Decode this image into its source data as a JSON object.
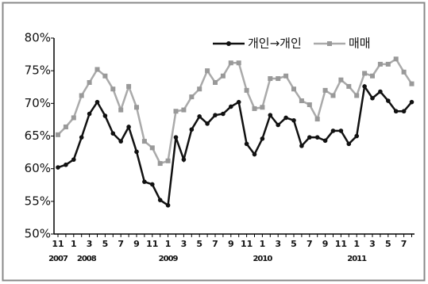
{
  "chart_data": {
    "type": "line",
    "categories": [
      "11",
      null,
      "1",
      null,
      "3",
      null,
      "5",
      null,
      "7",
      null,
      "9",
      null,
      "11",
      null,
      "1",
      null,
      "3",
      null,
      "5",
      null,
      "7",
      null,
      "9",
      null,
      "11",
      null,
      "1",
      null,
      "3",
      null,
      "5",
      null,
      "7",
      null,
      "9",
      null,
      "11",
      null,
      "1",
      null,
      "3",
      null,
      "5",
      null,
      "7",
      null
    ],
    "years": [
      "2007",
      null,
      "2008",
      null,
      null,
      null,
      null,
      null,
      null,
      null,
      null,
      null,
      null,
      null,
      "2009",
      null,
      null,
      null,
      null,
      null,
      null,
      null,
      null,
      null,
      null,
      null,
      "2010",
      null,
      null,
      null,
      null,
      null,
      null,
      null,
      null,
      null,
      null,
      null,
      "2011",
      null,
      null,
      null,
      null,
      null,
      null,
      null
    ],
    "series": [
      {
        "name": "개인→개인",
        "color": "#111111",
        "marker_color": "#111111",
        "values": [
          60.2,
          60.6,
          61.4,
          64.8,
          68.4,
          70.2,
          68.1,
          65.4,
          64.2,
          66.4,
          62.6,
          58.0,
          57.6,
          55.2,
          54.4,
          64.8,
          61.4,
          66.0,
          68.0,
          66.9,
          68.2,
          68.4,
          69.5,
          70.2,
          63.8,
          62.2,
          64.6,
          68.2,
          66.7,
          67.8,
          67.4,
          63.5,
          64.8,
          64.8,
          64.3,
          65.8,
          65.8,
          63.8,
          65.0,
          72.6,
          70.8,
          71.8,
          70.4,
          68.8,
          68.8,
          70.2
        ]
      },
      {
        "name": "매매",
        "color": "#aaaaaa",
        "marker_color": "#999999",
        "values": [
          65.2,
          66.4,
          67.8,
          71.2,
          73.2,
          75.2,
          74.2,
          72.2,
          69.0,
          72.6,
          69.4,
          64.2,
          63.2,
          60.8,
          61.2,
          68.8,
          69.0,
          71.0,
          72.2,
          75.0,
          73.2,
          74.2,
          76.2,
          76.2,
          72.0,
          69.2,
          69.4,
          73.8,
          73.8,
          74.2,
          72.2,
          70.4,
          69.8,
          67.6,
          72.0,
          71.2,
          73.6,
          72.6,
          71.2,
          74.6,
          74.2,
          76.0,
          76.0,
          76.8,
          74.8,
          73.0
        ]
      }
    ],
    "ylim": [
      50,
      80
    ],
    "yticks": [
      {
        "value": 50,
        "label": "50%"
      },
      {
        "value": 55,
        "label": "55%"
      },
      {
        "value": 60,
        "label": "60%"
      },
      {
        "value": 65,
        "label": "65%"
      },
      {
        "value": 70,
        "label": "70%"
      },
      {
        "value": 75,
        "label": "75%"
      },
      {
        "value": 80,
        "label": "80%"
      }
    ],
    "grid": false,
    "legend": "top-right"
  }
}
